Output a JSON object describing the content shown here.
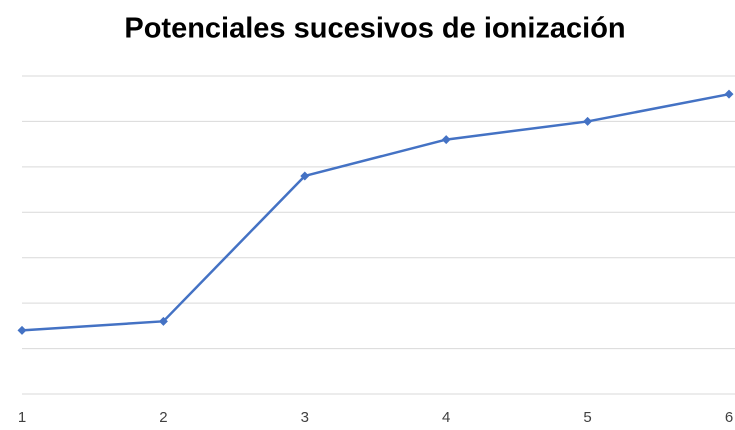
{
  "chart_data": {
    "type": "line",
    "title": "Potenciales sucesivos de ionización",
    "x": [
      1,
      2,
      3,
      4,
      5,
      6
    ],
    "xlim": [
      1,
      6
    ],
    "xticks": [
      1,
      2,
      3,
      4,
      5,
      6
    ],
    "series": [
      {
        "color": "#4472c4",
        "values": [
          1.4,
          1.6,
          4.8,
          5.6,
          6.0,
          6.6
        ]
      }
    ],
    "ylim": [
      0,
      7
    ],
    "yticks": [
      0,
      1,
      2,
      3,
      4,
      5,
      6,
      7
    ],
    "grid": true
  }
}
